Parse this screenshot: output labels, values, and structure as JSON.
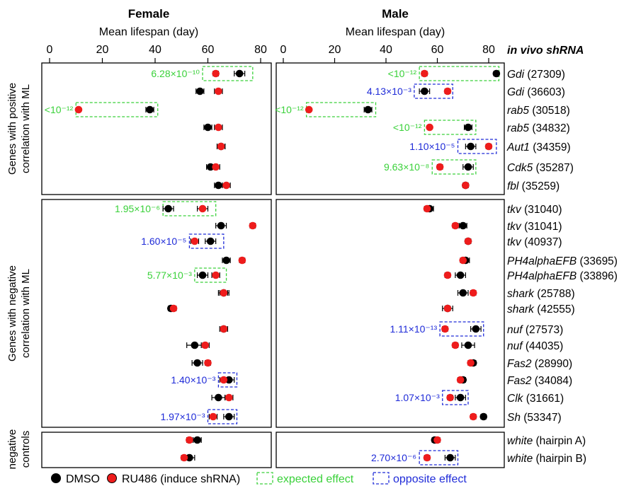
{
  "colors": {
    "dmso": "#000000",
    "ru486": "#ee1c1c",
    "expected": "#3ad13a",
    "opposite": "#1f2bd8",
    "axis": "#000000"
  },
  "panels": {
    "female": {
      "title": "Female",
      "axis_label": "Mean lifespan (day)"
    },
    "male": {
      "title": "Male",
      "axis_label": "Mean lifespan (day)"
    }
  },
  "right_header": "in vivo shRNA",
  "groups": [
    {
      "label_lines": [
        "Genes with positive",
        "correlation with ML"
      ]
    },
    {
      "label_lines": [
        "Genes with negative",
        "correlation with ML"
      ]
    },
    {
      "label_lines": [
        "negative",
        "controls"
      ]
    }
  ],
  "legend": {
    "dmso": "DMSO",
    "ru486": "RU486 (induce shRNA)",
    "expected": "expected effect",
    "opposite": "opposite effect"
  },
  "chart_data": {
    "type": "scatter",
    "xlabel": "Mean lifespan (day)",
    "xlim": [
      0,
      80
    ],
    "xticks": [
      0,
      20,
      40,
      60,
      80
    ],
    "series": [
      {
        "name": "DMSO"
      },
      {
        "name": "RU486 (induce shRNA)"
      }
    ],
    "rows": [
      {
        "gene": "Gdi",
        "id": "(27309)",
        "group": 0,
        "female": {
          "dmso": [
            72,
            2
          ],
          "ru": [
            63,
            1
          ],
          "box": "expected",
          "box_range": [
            58,
            77
          ],
          "p": "6.28×10⁻¹⁰"
        },
        "male": {
          "dmso": [
            83,
            1
          ],
          "ru": [
            55,
            1
          ],
          "box": "expected",
          "box_range": [
            53,
            84
          ],
          "p": "<10⁻¹²"
        }
      },
      {
        "gene": "Gdi",
        "id": "(36603)",
        "group": 0,
        "female": {
          "dmso": [
            57,
            1.5
          ],
          "ru": [
            64,
            1.5
          ]
        },
        "male": {
          "dmso": [
            55,
            2
          ],
          "ru": [
            64,
            1
          ],
          "box": "opposite",
          "box_range": [
            51,
            66
          ],
          "p": "4.13×10⁻³"
        }
      },
      {
        "gene": "rab5",
        "id": "(30518)",
        "group": 0,
        "female": {
          "dmso": [
            38,
            1.5
          ],
          "ru": [
            11,
            0.5
          ],
          "box": "expected",
          "box_range": [
            10,
            41
          ],
          "p": "<10⁻¹²"
        },
        "male": {
          "dmso": [
            33,
            1.5
          ],
          "ru": [
            10,
            0.5
          ],
          "box": "expected",
          "box_range": [
            9,
            36
          ],
          "p": "<10⁻¹²"
        }
      },
      {
        "gene": "rab5",
        "id": "(34832)",
        "group": 0,
        "female": {
          "dmso": [
            60,
            1.5
          ],
          "ru": [
            64,
            1.5
          ]
        },
        "male": {
          "dmso": [
            72,
            1.5
          ],
          "ru": [
            57,
            0.5
          ],
          "box": "expected",
          "box_range": [
            55,
            75
          ],
          "p": "<10⁻¹²"
        }
      },
      {
        "gene": "Aut1",
        "id": "(34359)",
        "group": 0,
        "female": {
          "dmso": [
            65,
            1.5
          ],
          "ru": [
            65,
            1.5
          ]
        },
        "male": {
          "dmso": [
            73,
            2
          ],
          "ru": [
            80,
            1
          ],
          "box": "opposite",
          "box_range": [
            68,
            83
          ],
          "p": "1.10×10⁻⁵"
        }
      },
      {
        "gene": "Cdk5",
        "id": "(35287)",
        "group": 0,
        "female": {
          "dmso": [
            61,
            1.5
          ],
          "ru": [
            63,
            1.5
          ]
        },
        "male": {
          "dmso": [
            72,
            2
          ],
          "ru": [
            61,
            1
          ],
          "box": "expected",
          "box_range": [
            58,
            75
          ],
          "p": "9.63×10⁻⁸"
        }
      },
      {
        "gene": "fbl",
        "id": "(35259)",
        "group": 0,
        "female": {
          "dmso": [
            64,
            1.5
          ],
          "ru": [
            67,
            1.5
          ]
        },
        "male": {
          "dmso": [
            71,
            1
          ],
          "ru": [
            71,
            1
          ]
        }
      },
      {
        "gene": "tkv",
        "id": "(31040)",
        "group": 1,
        "female": {
          "dmso": [
            45,
            2
          ],
          "ru": [
            58,
            2
          ],
          "box": "expected",
          "box_range": [
            43,
            63
          ],
          "p": "1.95×10⁻⁶"
        },
        "male": {
          "dmso": [
            57,
            1.5
          ],
          "ru": [
            56,
            1
          ]
        }
      },
      {
        "gene": "tkv",
        "id": "(31041)",
        "group": 1,
        "female": {
          "dmso": [
            65,
            2
          ],
          "ru": [
            77,
            1
          ]
        },
        "male": {
          "dmso": [
            70,
            1.5
          ],
          "ru": [
            67,
            1
          ]
        }
      },
      {
        "gene": "tkv",
        "id": "(40937)",
        "group": 1,
        "female": {
          "dmso": [
            61,
            2
          ],
          "ru": [
            55,
            1.5
          ],
          "box": "opposite",
          "box_range": [
            53,
            66
          ],
          "p": "1.60×10⁻⁵"
        },
        "male": {
          "dmso": [
            72,
            1
          ],
          "ru": [
            72,
            1
          ]
        }
      },
      {
        "gene": "PH4alphaEFB",
        "id": "(33695)",
        "group": 1,
        "female": {
          "dmso": [
            67,
            1.5
          ],
          "ru": [
            73,
            1
          ]
        },
        "male": {
          "dmso": [
            71,
            1.5
          ],
          "ru": [
            70,
            1
          ]
        }
      },
      {
        "gene": "PH4alphaEFB",
        "id": "(33896)",
        "group": 1,
        "female": {
          "dmso": [
            58,
            2
          ],
          "ru": [
            63,
            1.5
          ],
          "box": "expected",
          "box_range": [
            55,
            67
          ],
          "p": "5.77×10⁻³"
        },
        "male": {
          "dmso": [
            69,
            2
          ],
          "ru": [
            64,
            1
          ]
        }
      },
      {
        "gene": "shark",
        "id": "(25788)",
        "group": 1,
        "female": {
          "dmso": [
            66,
            2
          ],
          "ru": [
            66,
            1.5
          ]
        },
        "male": {
          "dmso": [
            70,
            2
          ],
          "ru": [
            74,
            1
          ]
        }
      },
      {
        "gene": "shark",
        "id": "(42555)",
        "group": 1,
        "female": {
          "dmso": [
            46,
            1
          ],
          "ru": [
            47,
            1
          ]
        },
        "male": {
          "dmso": [
            64,
            2
          ],
          "ru": [
            64,
            1
          ]
        }
      },
      {
        "gene": "nuf",
        "id": "(27573)",
        "group": 1,
        "female": {
          "dmso": [
            66,
            1.5
          ],
          "ru": [
            66,
            1
          ]
        },
        "male": {
          "dmso": [
            75,
            2
          ],
          "ru": [
            63,
            1
          ],
          "box": "opposite",
          "box_range": [
            61,
            78
          ],
          "p": "1.11×10⁻¹³"
        }
      },
      {
        "gene": "nuf",
        "id": "(44035)",
        "group": 1,
        "female": {
          "dmso": [
            55,
            3
          ],
          "ru": [
            59,
            1.5
          ]
        },
        "male": {
          "dmso": [
            72,
            2.5
          ],
          "ru": [
            67,
            1
          ]
        }
      },
      {
        "gene": "Fas2",
        "id": "(28990)",
        "group": 1,
        "female": {
          "dmso": [
            56,
            2
          ],
          "ru": [
            60,
            1
          ]
        },
        "male": {
          "dmso": [
            74,
            1
          ],
          "ru": [
            73,
            1
          ]
        }
      },
      {
        "gene": "Fas2",
        "id": "(34084)",
        "group": 1,
        "female": {
          "dmso": [
            68,
            2
          ],
          "ru": [
            66,
            1.5
          ],
          "box": "opposite",
          "box_range": [
            64,
            71
          ],
          "p": "1.40×10⁻³"
        },
        "male": {
          "dmso": [
            70,
            1
          ],
          "ru": [
            69,
            1
          ]
        }
      },
      {
        "gene": "Clk",
        "id": "(31661)",
        "group": 1,
        "female": {
          "dmso": [
            64,
            2.5
          ],
          "ru": [
            68,
            1.5
          ]
        },
        "male": {
          "dmso": [
            69,
            2
          ],
          "ru": [
            65,
            1
          ],
          "box": "opposite",
          "box_range": [
            62,
            72
          ],
          "p": "1.07×10⁻³"
        }
      },
      {
        "gene": "Sh",
        "id": "(53347)",
        "group": 1,
        "female": {
          "dmso": [
            68,
            2
          ],
          "ru": [
            62,
            1.5
          ],
          "box": "opposite",
          "box_range": [
            60,
            71
          ],
          "p": "1.97×10⁻³"
        },
        "male": {
          "dmso": [
            78,
            1
          ],
          "ru": [
            74,
            1
          ]
        }
      },
      {
        "gene": "white",
        "id": "(hairpin A)",
        "group": 2,
        "female": {
          "dmso": [
            56,
            1.5
          ],
          "ru": [
            53,
            1
          ]
        },
        "male": {
          "dmso": [
            59,
            1
          ],
          "ru": [
            60,
            1
          ]
        }
      },
      {
        "gene": "white",
        "id": "(hairpin B)",
        "group": 2,
        "female": {
          "dmso": [
            53,
            2
          ],
          "ru": [
            51,
            1
          ]
        },
        "male": {
          "dmso": [
            65,
            2
          ],
          "ru": [
            56,
            1
          ],
          "box": "opposite",
          "box_range": [
            53,
            68
          ],
          "p": "2.70×10⁻⁶"
        }
      }
    ]
  }
}
